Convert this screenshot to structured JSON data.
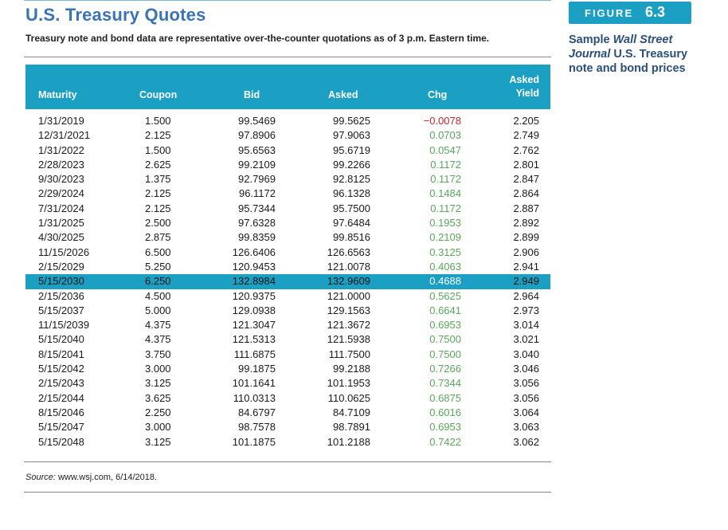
{
  "title": "U.S. Treasury Quotes",
  "subtitle": "Treasury note and bond data are representative over-the-counter quotations as of 3 p.m. Eastern time.",
  "figure": {
    "label": "FIGURE",
    "number": "6.3"
  },
  "caption": {
    "part1": "Sample ",
    "italic": "Wall Street Journal",
    "part2": " U.S. Treasury note and bond prices"
  },
  "columns": {
    "maturity": "Maturity",
    "coupon": "Coupon",
    "bid": "Bid",
    "asked": "Asked",
    "chg": "Chg",
    "asked_yield_line1": "Asked",
    "asked_yield_line2": "Yield"
  },
  "rows": [
    {
      "maturity": "1/31/2019",
      "coupon": "1.500",
      "bid": "99.5469",
      "asked": "99.5625",
      "chg": "−0.0078",
      "yield": "2.205"
    },
    {
      "maturity": "12/31/2021",
      "coupon": "2.125",
      "bid": "97.8906",
      "asked": "97.9063",
      "chg": "0.0703",
      "yield": "2.749"
    },
    {
      "maturity": "1/31/2022",
      "coupon": "1.500",
      "bid": "95.6563",
      "asked": "95.6719",
      "chg": "0.0547",
      "yield": "2.762"
    },
    {
      "maturity": "2/28/2023",
      "coupon": "2.625",
      "bid": "99.2109",
      "asked": "99.2266",
      "chg": "0.1172",
      "yield": "2.801"
    },
    {
      "maturity": "9/30/2023",
      "coupon": "1.375",
      "bid": "92.7969",
      "asked": "92.8125",
      "chg": "0.1172",
      "yield": "2.847"
    },
    {
      "maturity": "2/29/2024",
      "coupon": "2.125",
      "bid": "96.1172",
      "asked": "96.1328",
      "chg": "0.1484",
      "yield": "2.864"
    },
    {
      "maturity": "7/31/2024",
      "coupon": "2.125",
      "bid": "95.7344",
      "asked": "95.7500",
      "chg": "0.1172",
      "yield": "2.887"
    },
    {
      "maturity": "1/31/2025",
      "coupon": "2.500",
      "bid": "97.6328",
      "asked": "97.6484",
      "chg": "0.1953",
      "yield": "2.892"
    },
    {
      "maturity": "4/30/2025",
      "coupon": "2.875",
      "bid": "99.8359",
      "asked": "99.8516",
      "chg": "0.2109",
      "yield": "2.899"
    },
    {
      "maturity": "11/15/2026",
      "coupon": "6.500",
      "bid": "126.6406",
      "asked": "126.6563",
      "chg": "0.3125",
      "yield": "2.906"
    },
    {
      "maturity": "2/15/2029",
      "coupon": "5.250",
      "bid": "120.9453",
      "asked": "121.0078",
      "chg": "0.4063",
      "yield": "2.941"
    },
    {
      "maturity": "5/15/2030",
      "coupon": "6.250",
      "bid": "132.8984",
      "asked": "132.9609",
      "chg": "0.4688",
      "yield": "2.949"
    },
    {
      "maturity": "2/15/2036",
      "coupon": "4.500",
      "bid": "120.9375",
      "asked": "121.0000",
      "chg": "0.5625",
      "yield": "2.964"
    },
    {
      "maturity": "5/15/2037",
      "coupon": "5.000",
      "bid": "129.0938",
      "asked": "129.1563",
      "chg": "0.6641",
      "yield": "2.973"
    },
    {
      "maturity": "11/15/2039",
      "coupon": "4.375",
      "bid": "121.3047",
      "asked": "121.3672",
      "chg": "0.6953",
      "yield": "3.014"
    },
    {
      "maturity": "5/15/2040",
      "coupon": "4.375",
      "bid": "121.5313",
      "asked": "121.5938",
      "chg": "0.7500",
      "yield": "3.021"
    },
    {
      "maturity": "8/15/2041",
      "coupon": "3.750",
      "bid": "111.6875",
      "asked": "111.7500",
      "chg": "0.7500",
      "yield": "3.040"
    },
    {
      "maturity": "5/15/2042",
      "coupon": "3.000",
      "bid": "99.1875",
      "asked": "99.2188",
      "chg": "0.7266",
      "yield": "3.046"
    },
    {
      "maturity": "2/15/2043",
      "coupon": "3.125",
      "bid": "101.1641",
      "asked": "101.1953",
      "chg": "0.7344",
      "yield": "3.056"
    },
    {
      "maturity": "2/15/2044",
      "coupon": "3.625",
      "bid": "110.0313",
      "asked": "110.0625",
      "chg": "0.6875",
      "yield": "3.056"
    },
    {
      "maturity": "8/15/2046",
      "coupon": "2.250",
      "bid": "84.6797",
      "asked": "84.7109",
      "chg": "0.6016",
      "yield": "3.064"
    },
    {
      "maturity": "5/15/2047",
      "coupon": "3.000",
      "bid": "98.7578",
      "asked": "98.7891",
      "chg": "0.6953",
      "yield": "3.063"
    },
    {
      "maturity": "5/15/2048",
      "coupon": "3.125",
      "bid": "101.1875",
      "asked": "101.2188",
      "chg": "0.7422",
      "yield": "3.062"
    }
  ],
  "highlighted_row": "5/15/2030",
  "source": {
    "label": "Source:",
    "text": " www.wsj.com, 6/14/2018."
  },
  "colors": {
    "accent": "#1ba0c3",
    "title": "#3b74b5",
    "negative_change": "#c0282d",
    "positive_change": "#5aa75a"
  }
}
